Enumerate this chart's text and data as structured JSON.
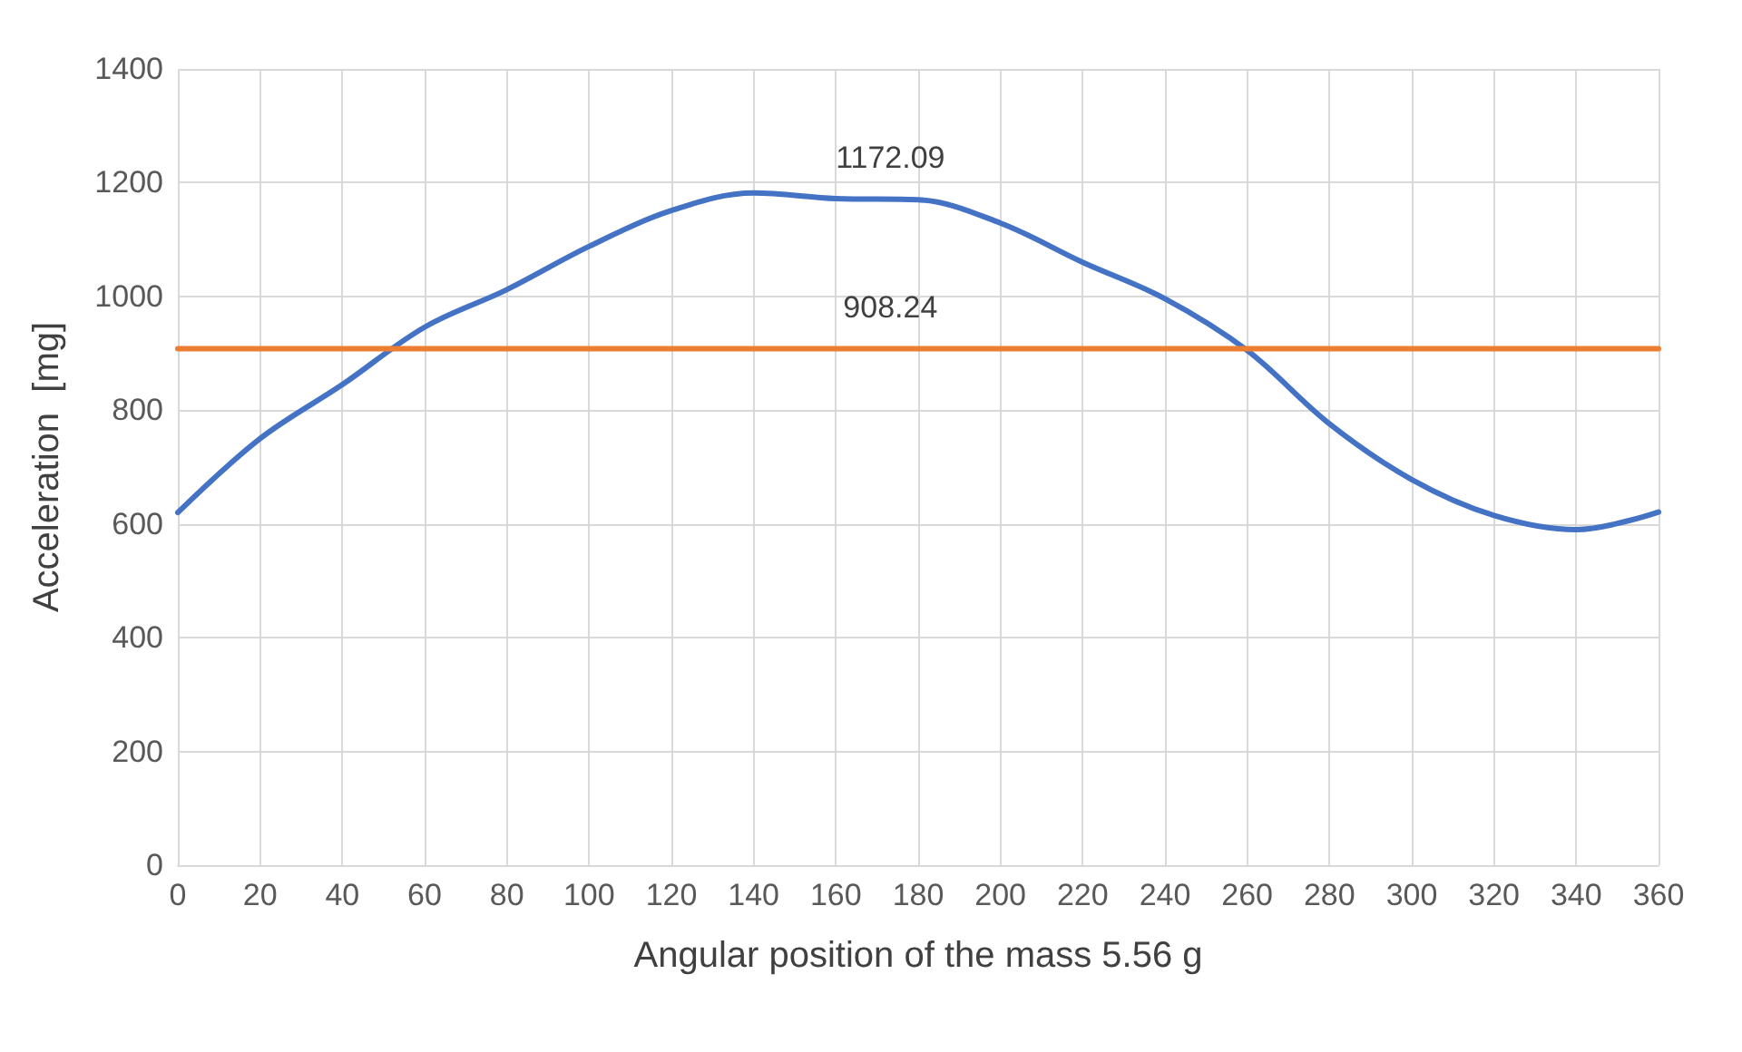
{
  "chart_data": {
    "type": "line",
    "xlabel": "Angular position of the mass 5.56 g",
    "ylabel": "Acceleration  [mg]",
    "x": [
      0,
      20,
      40,
      60,
      80,
      100,
      120,
      140,
      160,
      180,
      200,
      220,
      240,
      260,
      280,
      300,
      320,
      340,
      360
    ],
    "series": [
      {
        "color": "#4472c4",
        "values": [
          620,
          750,
          845,
          946,
          1012,
          1088,
          1151,
          1182,
          1172.09,
          1170,
          1129,
          1060,
          996,
          905,
          776,
          678,
          615,
          590,
          621
        ],
        "value_labels": [
          null,
          null,
          null,
          null,
          null,
          null,
          null,
          null,
          "1172.09",
          null,
          null,
          null,
          null,
          null,
          null,
          null,
          null,
          null,
          null
        ]
      },
      {
        "color": "#ed7d31",
        "values": [
          908.24,
          908.24,
          908.24,
          908.24,
          908.24,
          908.24,
          908.24,
          908.24,
          908.24,
          908.24,
          908.24,
          908.24,
          908.24,
          908.24,
          908.24,
          908.24,
          908.24,
          908.24,
          908.24
        ],
        "value_labels": [
          null,
          null,
          null,
          null,
          null,
          null,
          null,
          null,
          "908.24",
          null,
          null,
          null,
          null,
          null,
          null,
          null,
          null,
          null,
          null
        ]
      }
    ],
    "xlim": [
      0,
      360
    ],
    "xticks": [
      0,
      20,
      40,
      60,
      80,
      100,
      120,
      140,
      160,
      180,
      200,
      220,
      240,
      260,
      280,
      300,
      320,
      340,
      360
    ],
    "ylim": [
      0,
      1400
    ],
    "yticks": [
      0,
      200,
      400,
      600,
      800,
      1000,
      1200,
      1400
    ],
    "grid": true,
    "marker": "none",
    "line_style": "solid"
  }
}
